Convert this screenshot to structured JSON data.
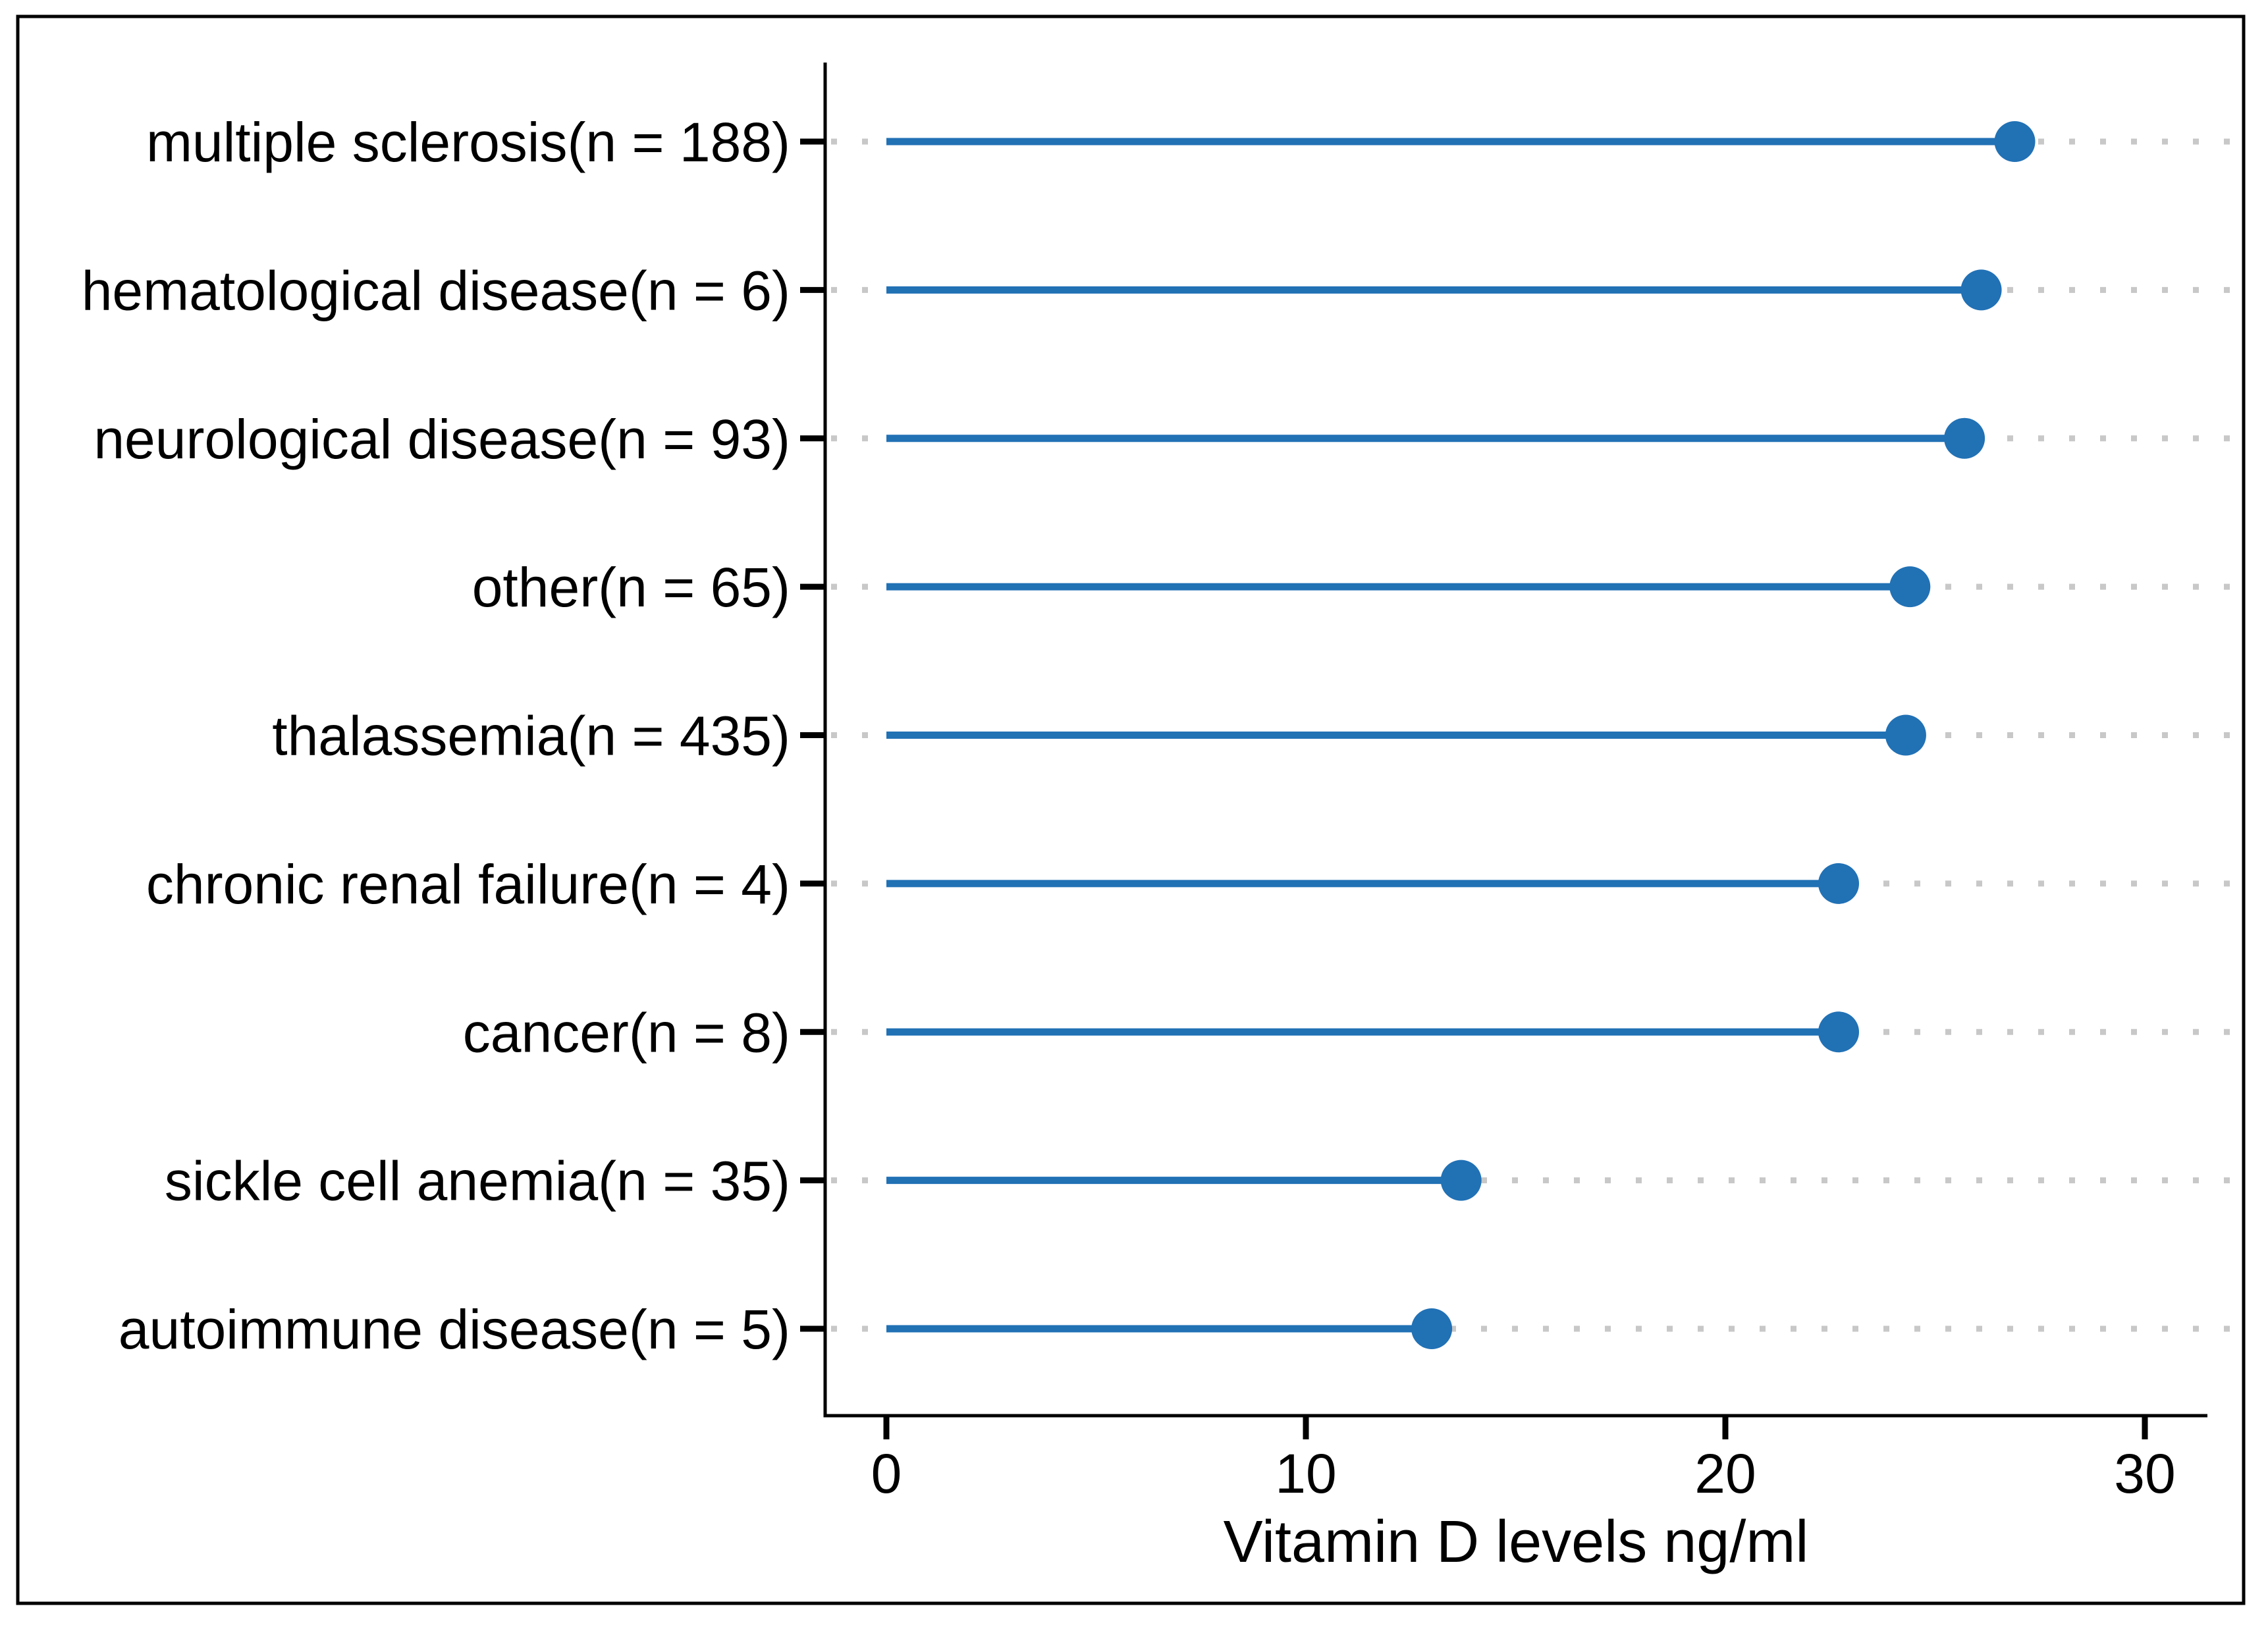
{
  "figure": {
    "background": "#ffffff",
    "border_color": "#000000"
  },
  "chart_data": {
    "type": "scatter",
    "variant": "lollipop",
    "orientation": "horizontal",
    "title": "",
    "xlabel": "Vitamin D levels ng/ml",
    "ylabel": "",
    "categories": [
      "multiple sclerosis(n = 188)",
      "hematological disease(n = 6)",
      "neurological disease(n = 93)",
      "other(n = 65)",
      "thalassemia(n = 435)",
      "chronic renal failure(n = 4)",
      "cancer(n = 8)",
      "sickle cell anemia(n = 35)",
      "autoimmune disease(n = 5)"
    ],
    "values": [
      26.9,
      26.1,
      25.7,
      24.4,
      24.3,
      22.7,
      22.7,
      13.7,
      13.0
    ],
    "x_ticks": [
      0,
      10,
      20,
      30
    ],
    "xlim": [
      -1.5,
      31.6
    ],
    "grid": "dotted-horizontal",
    "legend": "none",
    "colors": {
      "stem": "#2171b5",
      "dot": "#2171b5",
      "gridline": "#c8c8c8",
      "axis": "#000000",
      "text": "#000000"
    }
  }
}
